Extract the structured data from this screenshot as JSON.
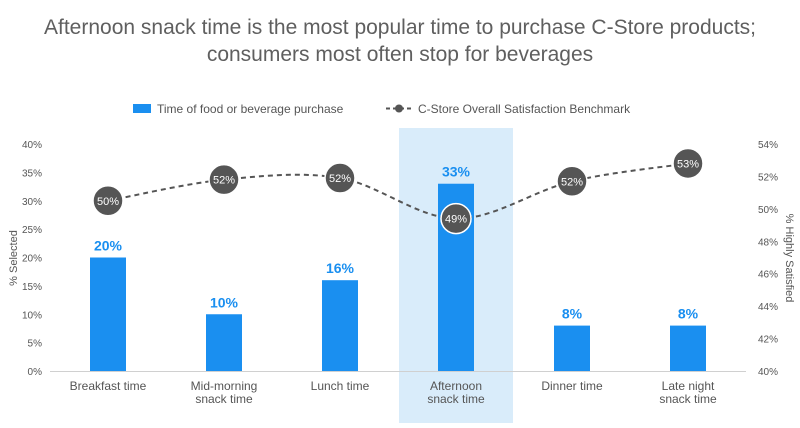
{
  "chart_data": {
    "type": "bar",
    "title": "Afternoon snack time is the most popular time to purchase C-Store products; consumers most often stop for beverages",
    "categories": [
      [
        "Breakfast time"
      ],
      [
        "Mid-morning",
        "snack time"
      ],
      [
        "Lunch time"
      ],
      [
        "Afternoon",
        "snack time"
      ],
      [
        "Dinner time"
      ],
      [
        "Late night",
        "snack time"
      ]
    ],
    "highlight_index": 3,
    "bar_series": {
      "name": "Time of food or beverage purchase",
      "values": [
        20,
        10,
        16,
        33,
        8,
        8
      ],
      "labels": [
        "20%",
        "10%",
        "16%",
        "33%",
        "8%",
        "8%"
      ]
    },
    "line_series": {
      "name": "C-Store Overall Satisfaction Benchmark",
      "values": [
        50.5,
        51.8,
        51.9,
        49.4,
        51.7,
        52.8
      ],
      "labels": [
        "50%",
        "52%",
        "52%",
        "49%",
        "52%",
        "53%"
      ]
    },
    "ylabel_left": "% Selected",
    "ylabel_right": "% Highly Satisfied",
    "ylim_left": [
      0,
      40
    ],
    "yticks_left": [
      "0%",
      "5%",
      "10%",
      "15%",
      "20%",
      "25%",
      "30%",
      "35%",
      "40%"
    ],
    "ylim_right": [
      40,
      54
    ],
    "yticks_right": [
      "40%",
      "42%",
      "44%",
      "46%",
      "48%",
      "50%",
      "52%",
      "54%"
    ],
    "legend_position": "top",
    "grid": false,
    "colors": {
      "bar": "#1a8ff0",
      "bar_label": "#1a8ff0",
      "highlight_band": "#d9ecfa",
      "line": "#555555",
      "marker": "#555555",
      "marker_text": "#ffffff",
      "axis_text": "#555555",
      "title": "#5f5f5f"
    }
  }
}
